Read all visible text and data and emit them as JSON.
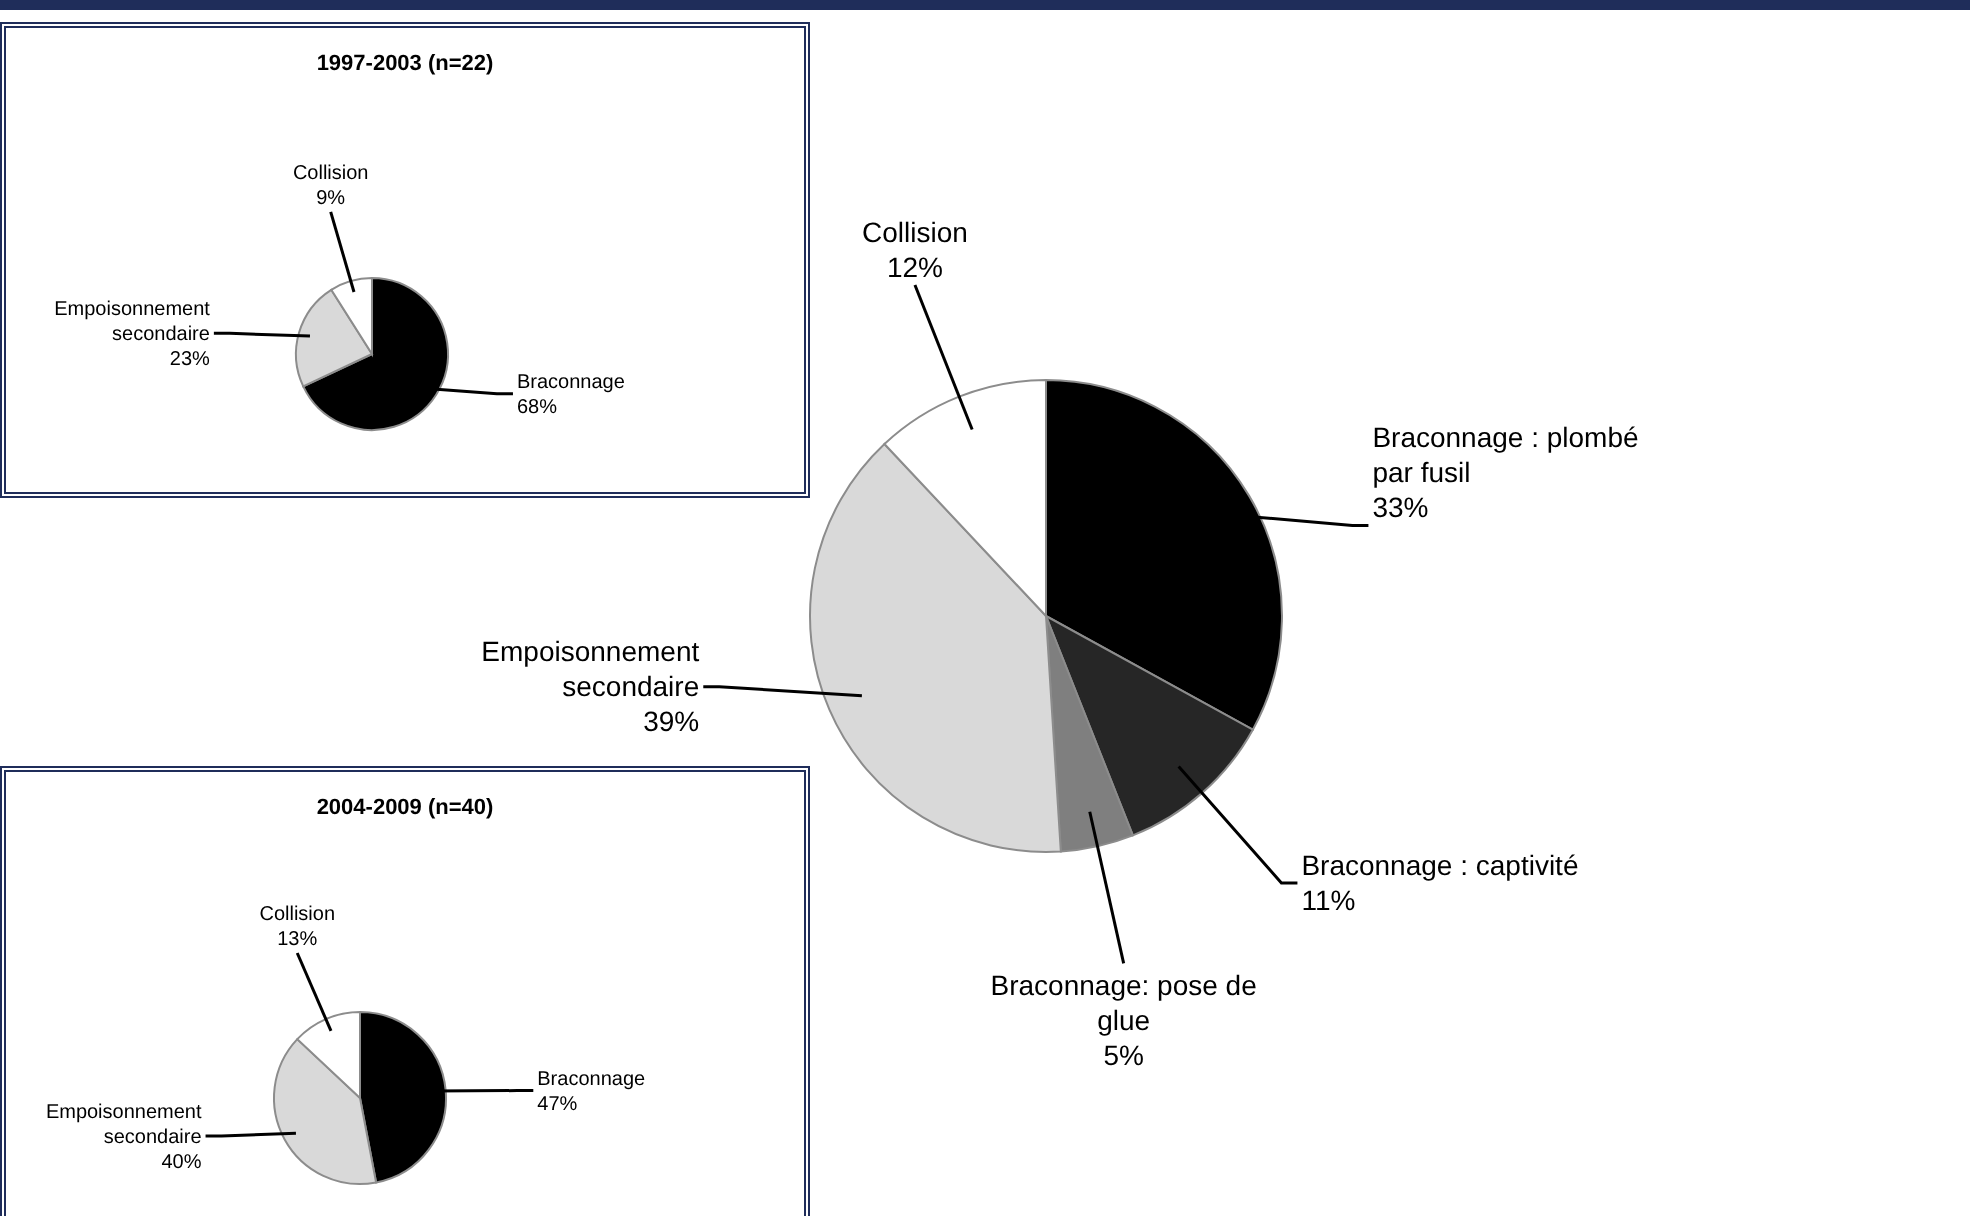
{
  "chart_data": [
    {
      "type": "pie",
      "title": "1997-2003 (n=22)",
      "categories": [
        "Braconnage",
        "Empoisonnement secondaire",
        "Collision"
      ],
      "values": [
        68,
        23,
        9
      ],
      "colors": [
        "#000000",
        "#d9d9d9",
        "#ffffff"
      ],
      "value_labels": [
        "68%",
        "23%",
        "9%"
      ]
    },
    {
      "type": "pie",
      "categories": [
        "Braconnage : plombé par fusil",
        "Braconnage : captivité",
        "Braconnage: pose de glue",
        "Empoisonnement secondaire",
        "Collision"
      ],
      "values": [
        33,
        11,
        5,
        39,
        12
      ],
      "colors": [
        "#000000",
        "#262626",
        "#7f7f7f",
        "#d9d9d9",
        "#ffffff"
      ],
      "value_labels": [
        "33%",
        "11%",
        "5%",
        "39%",
        "12%"
      ]
    },
    {
      "type": "pie",
      "title": "2004-2009 (n=40)",
      "categories": [
        "Braconnage",
        "Empoisonnement secondaire",
        "Collision"
      ],
      "values": [
        47,
        40,
        13
      ],
      "colors": [
        "#000000",
        "#d9d9d9",
        "#ffffff"
      ],
      "value_labels": [
        "47%",
        "40%",
        "13%"
      ]
    }
  ]
}
